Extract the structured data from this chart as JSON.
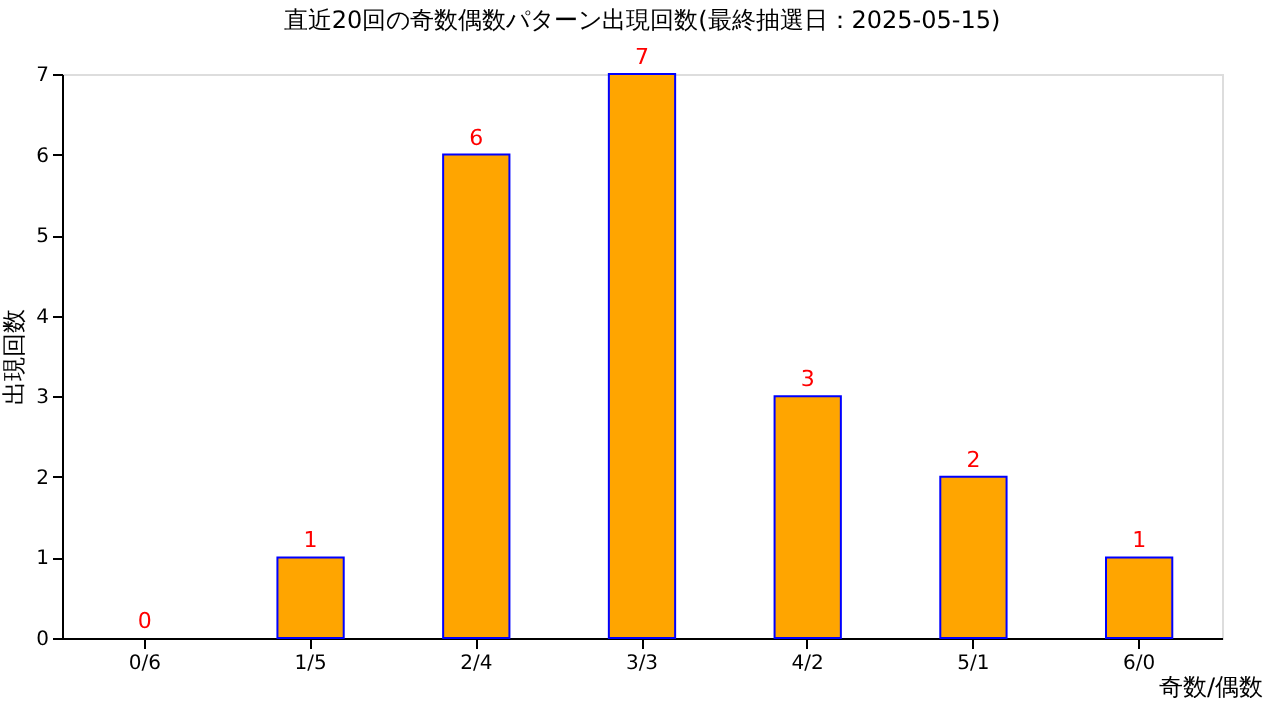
{
  "chart_data": {
    "type": "bar",
    "title": "直近20回の奇数偶数パターン出現回数(最終抽選日：2025-05-15)",
    "categories": [
      "0/6",
      "1/5",
      "2/4",
      "3/3",
      "4/2",
      "5/1",
      "6/0"
    ],
    "values": [
      0,
      1,
      6,
      7,
      3,
      2,
      1
    ],
    "color": "#ffa500",
    "xlabel": "奇数/偶数",
    "ylabel": "出現回数",
    "ylim": [
      0,
      7
    ],
    "yticks": [
      0,
      1,
      2,
      3,
      4,
      5,
      6,
      7
    ],
    "grid": false,
    "data_labels": true
  }
}
